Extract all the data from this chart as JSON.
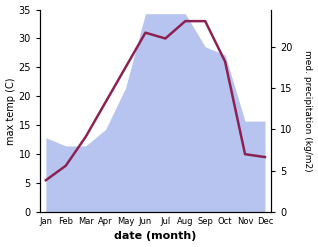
{
  "months": [
    "Jan",
    "Feb",
    "Mar",
    "Apr",
    "May",
    "Jun",
    "Jul",
    "Aug",
    "Sep",
    "Oct",
    "Nov",
    "Dec"
  ],
  "temp": [
    5.5,
    8.0,
    13.0,
    19.0,
    25.0,
    31.0,
    30.0,
    33.0,
    33.0,
    26.0,
    10.0,
    9.5
  ],
  "precip": [
    9,
    8,
    8,
    10,
    15,
    24,
    24,
    24,
    20,
    19,
    11,
    11
  ],
  "temp_color": "#8B2252",
  "precip_color": "#b8c4f0",
  "ylim_temp": [
    0,
    35
  ],
  "ylim_precip": [
    0,
    24.5
  ],
  "ylabel_left": "max temp (C)",
  "ylabel_right": "med. precipitation (kg/m2)",
  "xlabel": "date (month)",
  "bg_color": "#ffffff",
  "yticks_left": [
    0,
    5,
    10,
    15,
    20,
    25,
    30,
    35
  ],
  "yticks_right": [
    0,
    5,
    10,
    15,
    20
  ],
  "temp_linewidth": 1.8
}
